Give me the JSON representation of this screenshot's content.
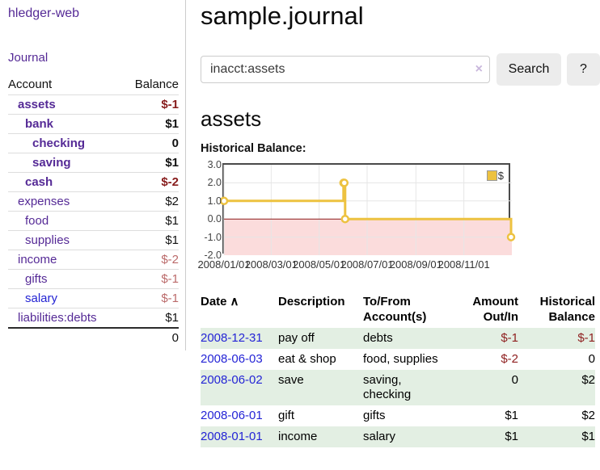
{
  "app": {
    "brand": "hledger-web"
  },
  "sidebar": {
    "journal_link": "Journal",
    "accounts_table": {
      "col_account": "Account",
      "col_balance": "Balance",
      "rows": [
        {
          "name": "assets",
          "balance": "$-1"
        },
        {
          "name": "bank",
          "balance": "$1"
        },
        {
          "name": "checking",
          "balance": "0"
        },
        {
          "name": "saving",
          "balance": "$1"
        },
        {
          "name": "cash",
          "balance": "$-2"
        },
        {
          "name": "expenses",
          "balance": "$2"
        },
        {
          "name": "food",
          "balance": "$1"
        },
        {
          "name": "supplies",
          "balance": "$1"
        },
        {
          "name": "income",
          "balance": "$-2"
        },
        {
          "name": "gifts",
          "balance": "$-1"
        },
        {
          "name": "salary",
          "balance": "$-1"
        },
        {
          "name": "liabilities:debts",
          "balance": "$1"
        }
      ],
      "total": "0"
    }
  },
  "header": {
    "title": "sample.journal"
  },
  "search": {
    "query": "inacct:assets",
    "clear_icon": "×",
    "button_label": "Search",
    "help_label": "?"
  },
  "account_page": {
    "heading": "assets",
    "chart_label": "Historical Balance:"
  },
  "chart_data": {
    "type": "line",
    "title": "Historical Balance",
    "steps": true,
    "grid": true,
    "legend_position": "top-right",
    "negative_region_shaded": true,
    "xlim": [
      "2008-01-01",
      "2009-01-01"
    ],
    "ylim": [
      -2,
      3
    ],
    "x_ticks": [
      "2008-01-01",
      "2008-03-01",
      "2008-05-01",
      "2008-07-01",
      "2008-09-01",
      "2008-11-01"
    ],
    "x_tick_labels": [
      "2008/01/01",
      "2008/03/01",
      "2008/05/01",
      "2008/07/01",
      "2008/09/01",
      "2008/11/01"
    ],
    "y_ticks": [
      3,
      2,
      1,
      0,
      -1,
      -2
    ],
    "y_tick_labels": [
      "3.0",
      "2.0",
      "1.0",
      "0.0",
      "-1.0",
      "-2.0"
    ],
    "colors": {
      "line": "#edc240",
      "zero_line": "#8b1a1a",
      "negative_fill": "#fbdcdc",
      "grid": "#e6e6e6"
    },
    "series": [
      {
        "name": "$",
        "color": "#edc240",
        "points": [
          [
            "2008-01-01",
            1
          ],
          [
            "2008-06-01",
            2
          ],
          [
            "2008-06-02",
            2
          ],
          [
            "2008-06-03",
            0
          ],
          [
            "2008-12-31",
            -1
          ]
        ]
      }
    ]
  },
  "register": {
    "col_date": "Date",
    "sort_icon": "∧",
    "col_description": "Description",
    "col_accounts": "To/From Account(s)",
    "col_amount": "Amount Out/In",
    "col_balance": "Historical Balance",
    "rows": [
      {
        "date": "2008-12-31",
        "description": "pay off",
        "accounts": "debts",
        "amount": "$-1",
        "balance": "$-1"
      },
      {
        "date": "2008-06-03",
        "description": "eat & shop",
        "accounts": "food, supplies",
        "amount": "$-2",
        "balance": "0"
      },
      {
        "date": "2008-06-02",
        "description": "save",
        "accounts": "saving, checking",
        "amount": "0",
        "balance": "$2"
      },
      {
        "date": "2008-06-01",
        "description": "gift",
        "accounts": "gifts",
        "amount": "$1",
        "balance": "$2"
      },
      {
        "date": "2008-01-01",
        "description": "income",
        "accounts": "salary",
        "amount": "$1",
        "balance": "$1"
      }
    ]
  }
}
